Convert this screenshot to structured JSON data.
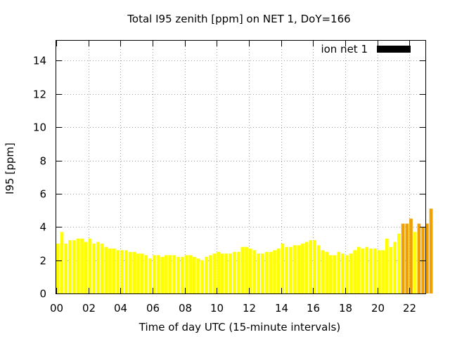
{
  "chart_data": {
    "type": "bar",
    "title": "Total I95 zenith [ppm] on NET 1, DoY=166",
    "xlabel": "Time of day UTC (15-minute intervals)",
    "ylabel": "I95 [ppm]",
    "xlim": [
      0,
      23
    ],
    "ylim": [
      0,
      15.2
    ],
    "x_ticks": [
      "00",
      "02",
      "04",
      "06",
      "08",
      "10",
      "12",
      "14",
      "16",
      "18",
      "20",
      "22"
    ],
    "y_ticks": [
      "0",
      "2",
      "4",
      "6",
      "8",
      "10",
      "12",
      "14"
    ],
    "grid": true,
    "legend": {
      "position": "top-right",
      "label": "ion net 1",
      "color": "#000000"
    },
    "colors": {
      "low": "#ffff00",
      "high": "#f0a000",
      "threshold": 4.0
    },
    "series": [
      {
        "name": "ion net 1",
        "interval_hours": 0.25,
        "values": [
          3.0,
          3.7,
          3.0,
          3.2,
          3.2,
          3.3,
          3.3,
          3.1,
          3.3,
          3.0,
          3.1,
          3.0,
          2.8,
          2.7,
          2.7,
          2.6,
          2.6,
          2.6,
          2.5,
          2.5,
          2.4,
          2.4,
          2.3,
          2.1,
          2.3,
          2.3,
          2.2,
          2.3,
          2.3,
          2.3,
          2.2,
          2.2,
          2.3,
          2.3,
          2.2,
          2.1,
          2.0,
          2.2,
          2.3,
          2.4,
          2.5,
          2.4,
          2.4,
          2.4,
          2.5,
          2.5,
          2.8,
          2.8,
          2.7,
          2.6,
          2.4,
          2.4,
          2.5,
          2.5,
          2.6,
          2.7,
          3.0,
          2.8,
          2.8,
          2.9,
          2.9,
          3.0,
          3.1,
          3.2,
          3.2,
          2.9,
          2.6,
          2.5,
          2.3,
          2.3,
          2.5,
          2.4,
          2.3,
          2.4,
          2.6,
          2.8,
          2.7,
          2.8,
          2.7,
          2.7,
          2.6,
          2.6,
          3.3,
          2.8,
          3.1,
          3.6,
          4.2,
          4.2,
          4.5,
          3.7,
          4.2,
          4.0,
          4.2,
          5.1
        ]
      }
    ]
  }
}
